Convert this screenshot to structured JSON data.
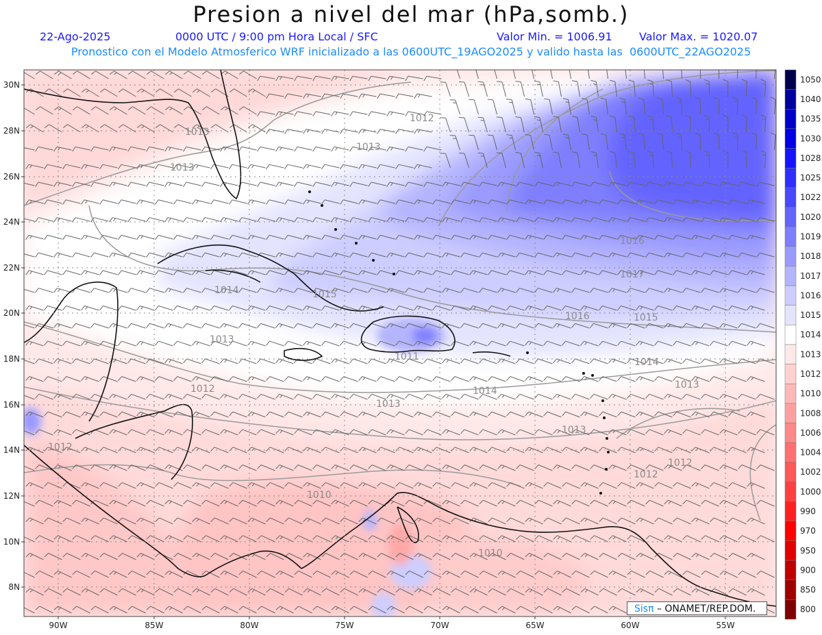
{
  "title": "Presion a nivel del mar (hPa,somb.)",
  "date": "22-Ago-2025",
  "time_label": "0000 UTC / 9:00 pm Hora Local / SFC",
  "min_label": "Valor Min. = 1006.91",
  "max_label": "Valor Max. = 1020.07",
  "forecast_note": "Pronostico con el Modelo Atmosferico WRF inicializado a las 0600UTC_19AGO2025 y valido hasta las  0600UTC_22AGO2025",
  "credit": {
    "brand": "Sisπ",
    "org": "– ONAMET/REP.DOM."
  },
  "axes": {
    "lon_labels": [
      "90W",
      "85W",
      "80W",
      "75W",
      "70W",
      "65W",
      "60W",
      "55W"
    ],
    "lat_labels": [
      "30N",
      "28N",
      "26N",
      "24N",
      "22N",
      "20N",
      "18N",
      "16N",
      "14N",
      "12N",
      "10N",
      "8N"
    ]
  },
  "legend": {
    "levels": [
      "1050",
      "1040",
      "1035",
      "1030",
      "1028",
      "1025",
      "1022",
      "1020",
      "1019",
      "1018",
      "1017",
      "1016",
      "1015",
      "1014",
      "1013",
      "1012",
      "1010",
      "1008",
      "1006",
      "1004",
      "1002",
      "1000",
      "990",
      "970",
      "950",
      "900",
      "850",
      "800"
    ],
    "colors": [
      "#00004d",
      "#0000a0",
      "#0000c8",
      "#0000e6",
      "#1414ff",
      "#2e2eff",
      "#4848ff",
      "#6464ff",
      "#7e7eff",
      "#9a9aff",
      "#b4b4ff",
      "#cdcdff",
      "#e4e4ff",
      "#ffffff",
      "#ffe8e8",
      "#ffd0d0",
      "#ffb8b8",
      "#ffa0a0",
      "#ff8888",
      "#ff7070",
      "#ff5858",
      "#ff4040",
      "#ff2020",
      "#ff0000",
      "#e00000",
      "#c00000",
      "#a00000",
      "#800000"
    ]
  },
  "contour_labels": [
    {
      "text": "1012"
    },
    {
      "text": "1013"
    },
    {
      "text": "1013"
    },
    {
      "text": "1013"
    },
    {
      "text": "1014"
    },
    {
      "text": "1015"
    },
    {
      "text": "1013"
    },
    {
      "text": "1012"
    },
    {
      "text": "1013"
    },
    {
      "text": "1014"
    },
    {
      "text": "1016"
    },
    {
      "text": "1015"
    },
    {
      "text": "1014"
    },
    {
      "text": "1013"
    },
    {
      "text": "1016"
    },
    {
      "text": "1017"
    },
    {
      "text": "1013"
    },
    {
      "text": "1012"
    },
    {
      "text": "1012"
    },
    {
      "text": "1010"
    },
    {
      "text": "1010"
    },
    {
      "text": "1012"
    },
    {
      "text": "1011"
    }
  ]
}
